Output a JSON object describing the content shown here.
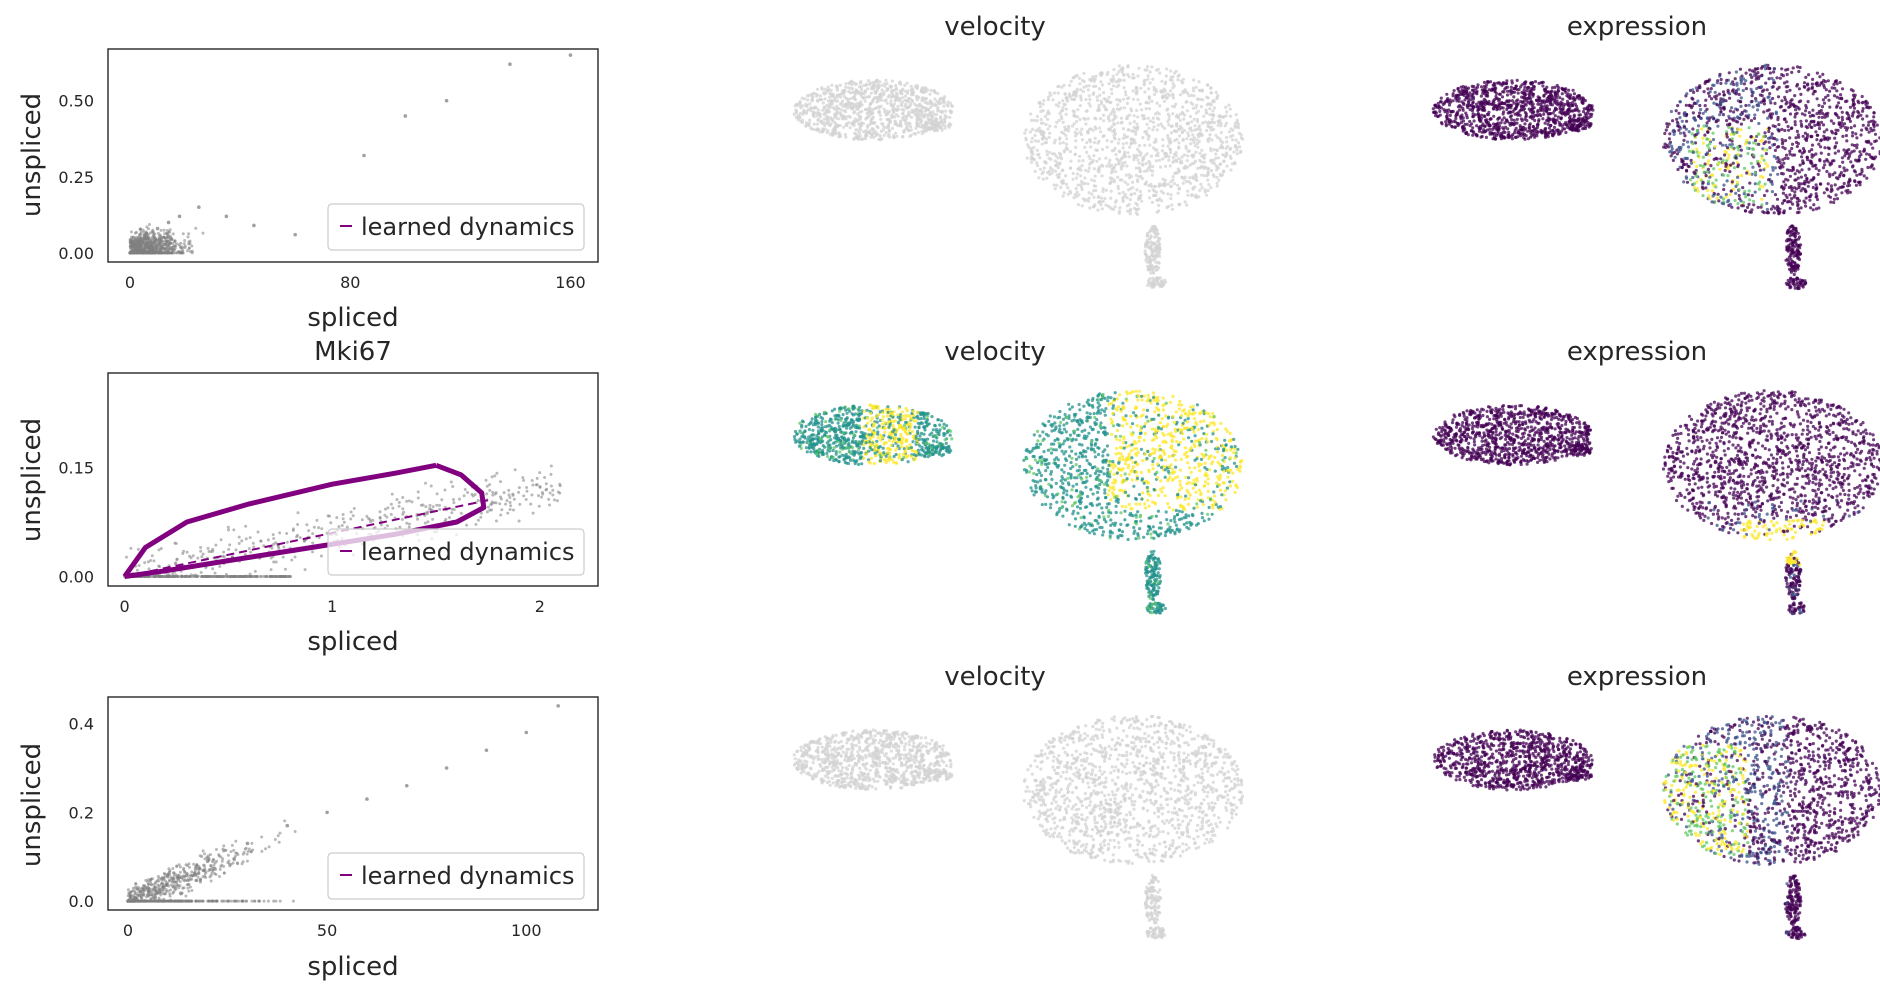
{
  "colors": {
    "scatter": "#808080",
    "umap_grey": "#d3d3d3",
    "dynamics": "#800080",
    "axes": "#262626",
    "viridis": [
      "#440154",
      "#3b528b",
      "#21918c",
      "#5ec962",
      "#fde725"
    ]
  },
  "chart_data": [
    {
      "type": "scatter",
      "panel": "phase-portrait-1",
      "title": "",
      "xlabel": "spliced",
      "ylabel": "unspliced",
      "xlim": [
        -8,
        170
      ],
      "ylim": [
        -0.03,
        0.67
      ],
      "xticks": [
        "0",
        "80",
        "160"
      ],
      "yticks": [
        "0.00",
        "0.25",
        "0.50"
      ],
      "legend": {
        "label": "learned dynamics",
        "loc": "lower right"
      },
      "points": [
        [
          0,
          0
        ],
        [
          3,
          0.02
        ],
        [
          6,
          0.05
        ],
        [
          10,
          0.08
        ],
        [
          14,
          0.1
        ],
        [
          18,
          0.12
        ],
        [
          25,
          0.15
        ],
        [
          35,
          0.12
        ],
        [
          45,
          0.09
        ],
        [
          60,
          0.06
        ],
        [
          85,
          0.32
        ],
        [
          100,
          0.45
        ],
        [
          115,
          0.5
        ],
        [
          138,
          0.62
        ],
        [
          160,
          0.65
        ]
      ]
    },
    {
      "type": "line",
      "panel": "phase-portrait-2",
      "title": "Mki67",
      "xlabel": "spliced",
      "ylabel": "unspliced",
      "xlim": [
        -0.08,
        2.28
      ],
      "ylim": [
        -0.013,
        0.28
      ],
      "xticks": [
        "0",
        "1",
        "2"
      ],
      "yticks": [
        "0.00",
        "0.15"
      ],
      "legend": {
        "label": "learned dynamics",
        "loc": "lower right"
      },
      "dynamics_upper": [
        [
          0,
          0
        ],
        [
          0.1,
          0.04
        ],
        [
          0.3,
          0.075
        ],
        [
          0.6,
          0.1
        ],
        [
          1.0,
          0.127
        ],
        [
          1.3,
          0.142
        ],
        [
          1.5,
          0.153
        ]
      ],
      "dynamics_return": [
        [
          1.5,
          0.153
        ],
        [
          1.62,
          0.14
        ],
        [
          1.72,
          0.115
        ],
        [
          1.73,
          0.095
        ],
        [
          1.6,
          0.075
        ],
        [
          1.3,
          0.058
        ],
        [
          0.9,
          0.04
        ],
        [
          0.5,
          0.022
        ],
        [
          0.2,
          0.008
        ],
        [
          0,
          0
        ]
      ],
      "steady_state": [
        [
          0,
          0
        ],
        [
          1.75,
          0.105
        ]
      ]
    },
    {
      "type": "scatter",
      "panel": "phase-portrait-3",
      "title": "",
      "xlabel": "spliced",
      "ylabel": "unspliced",
      "xlim": [
        -5,
        118
      ],
      "ylim": [
        -0.02,
        0.46
      ],
      "xticks": [
        "0",
        "50",
        "100"
      ],
      "yticks": [
        "0.0",
        "0.2",
        "0.4"
      ],
      "legend": {
        "label": "learned dynamics",
        "loc": "lower right"
      },
      "points": [
        [
          0,
          0
        ],
        [
          5,
          0.03
        ],
        [
          10,
          0.06
        ],
        [
          20,
          0.09
        ],
        [
          30,
          0.13
        ],
        [
          40,
          0.17
        ],
        [
          50,
          0.2
        ],
        [
          60,
          0.23
        ],
        [
          70,
          0.26
        ],
        [
          80,
          0.3
        ],
        [
          90,
          0.34
        ],
        [
          100,
          0.38
        ],
        [
          108,
          0.44
        ]
      ]
    }
  ],
  "embeddings": [
    {
      "row": 1,
      "velocity_title": "velocity",
      "expression_title": "expression",
      "velocity_colored": false
    },
    {
      "row": 2,
      "velocity_title": "velocity",
      "expression_title": "expression",
      "velocity_colored": true
    },
    {
      "row": 3,
      "velocity_title": "velocity",
      "expression_title": "expression",
      "velocity_colored": false
    }
  ]
}
